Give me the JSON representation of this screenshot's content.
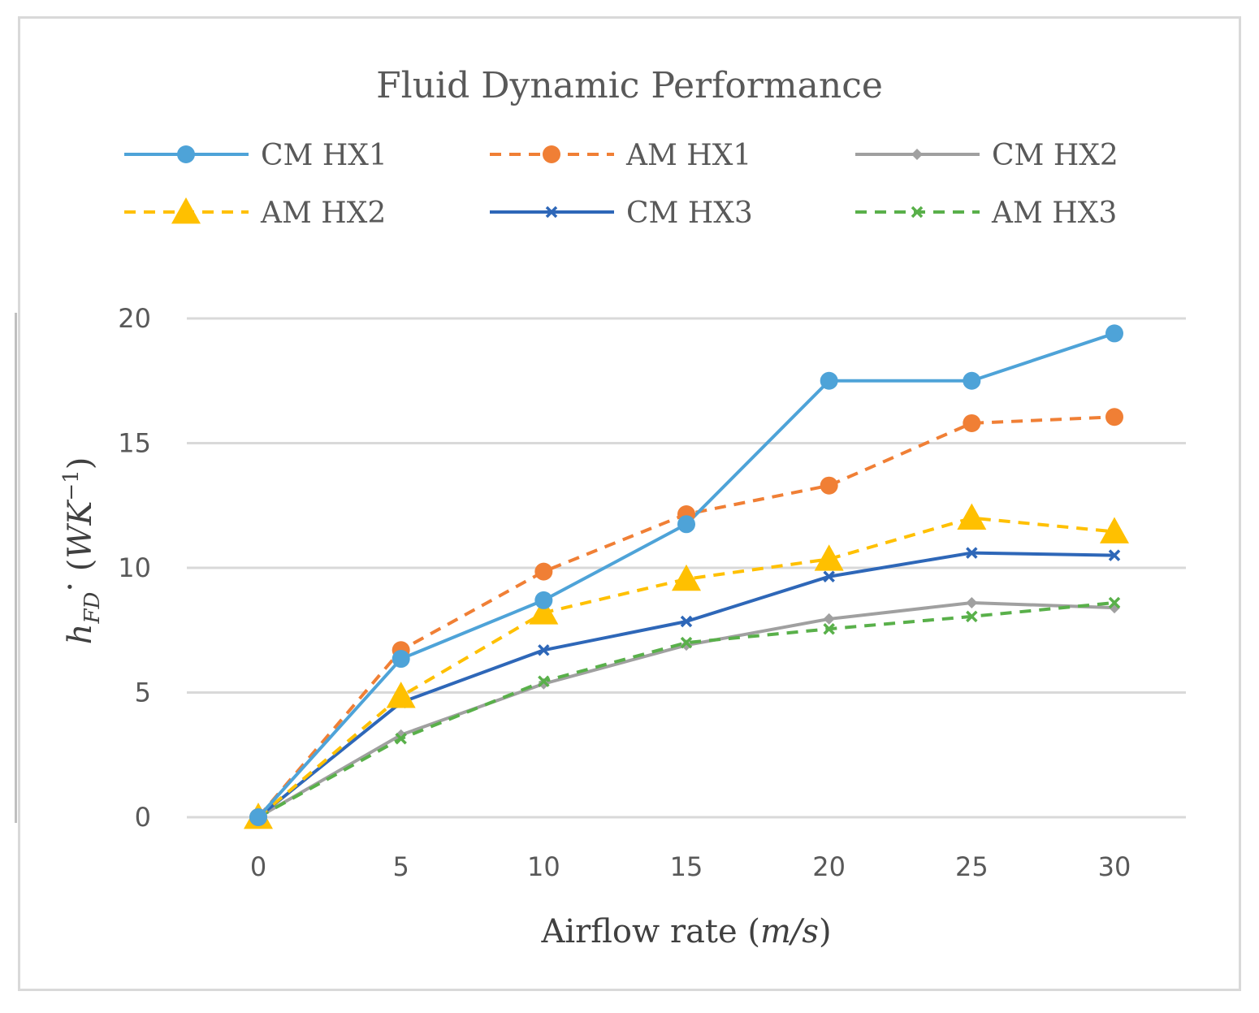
{
  "chart_data": {
    "type": "line",
    "title": "Fluid Dynamic Performance",
    "xlabel": "Airflow rate",
    "xlabel_unit": "m/s",
    "ylabel_main": "h",
    "ylabel_sub": "FD",
    "ylabel_unit_text": "WK",
    "ylabel_unit_exp": "−1",
    "x": [
      0,
      5,
      10,
      15,
      20,
      25,
      30
    ],
    "xlim": [
      0,
      30
    ],
    "ylim": [
      0,
      20
    ],
    "x_ticks": [
      "0",
      "5",
      "10",
      "15",
      "20",
      "25",
      "30"
    ],
    "y_ticks": [
      "0",
      "5",
      "10",
      "15",
      "20"
    ],
    "grid": true,
    "legend_position": "top",
    "series": [
      {
        "name": "CM HX1",
        "values": [
          0,
          6.35,
          8.7,
          11.75,
          17.5,
          17.5,
          19.4
        ],
        "color": "#4ea3d8",
        "dashed": false,
        "marker": "circle"
      },
      {
        "name": "AM HX1",
        "values": [
          0,
          6.7,
          9.85,
          12.15,
          13.3,
          15.8,
          16.05
        ],
        "color": "#f07f35",
        "dashed": true,
        "marker": "circle"
      },
      {
        "name": "CM HX2",
        "values": [
          0,
          3.3,
          5.35,
          6.9,
          7.95,
          8.6,
          8.4
        ],
        "color": "#a0a0a0",
        "dashed": false,
        "marker": "diamond"
      },
      {
        "name": "AM HX2",
        "values": [
          0,
          4.85,
          8.2,
          9.55,
          10.35,
          12.0,
          11.45
        ],
        "color": "#ffc000",
        "dashed": true,
        "marker": "triangle"
      },
      {
        "name": "CM HX3",
        "values": [
          0,
          4.6,
          6.7,
          7.85,
          9.65,
          10.6,
          10.5
        ],
        "color": "#2e67b8",
        "dashed": false,
        "marker": "x"
      },
      {
        "name": "AM HX3",
        "values": [
          0,
          3.15,
          5.45,
          7.0,
          7.55,
          8.05,
          8.6
        ],
        "color": "#59b04a",
        "dashed": true,
        "marker": "x"
      }
    ]
  }
}
